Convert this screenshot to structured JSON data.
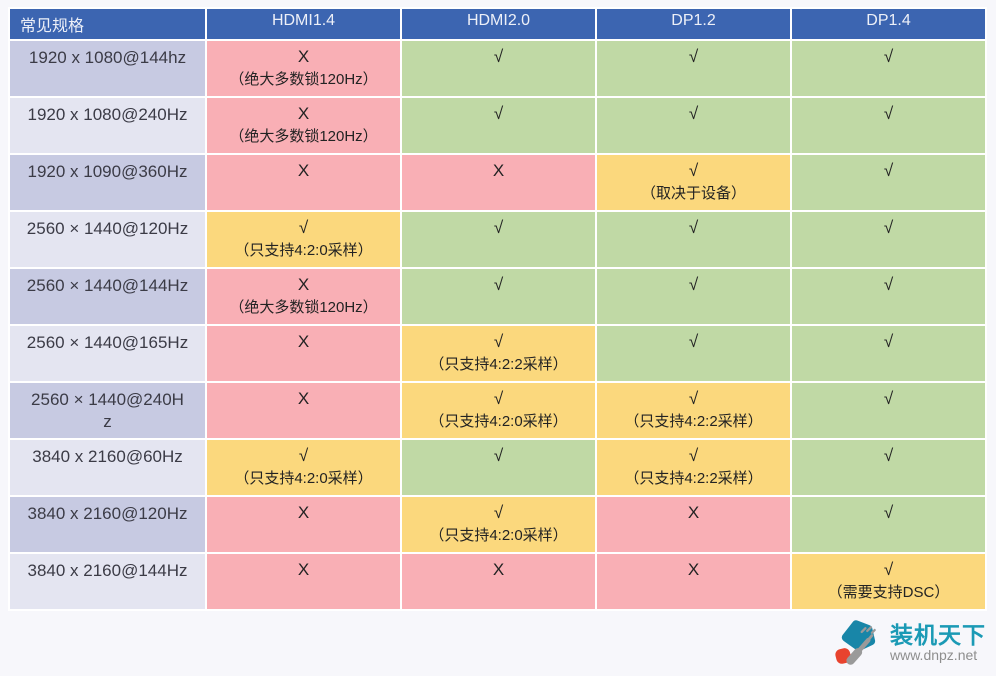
{
  "chart_data": {
    "type": "table",
    "columns": [
      "常见规格",
      "HDMI1.4",
      "HDMI2.0",
      "DP1.2",
      "DP1.4"
    ],
    "status_colors": {
      "yes": "#C0D9A5",
      "no": "#F9AFB5",
      "partial": "#FBD87D"
    },
    "rows": [
      {
        "spec": "1920 x 1080@144hz",
        "cells": [
          {
            "status": "no",
            "mark": "X",
            "note": "（绝大多数锁120Hz）"
          },
          {
            "status": "yes",
            "mark": "√",
            "note": ""
          },
          {
            "status": "yes",
            "mark": "√",
            "note": ""
          },
          {
            "status": "yes",
            "mark": "√",
            "note": ""
          }
        ]
      },
      {
        "spec": "1920 x 1080@240Hz",
        "cells": [
          {
            "status": "no",
            "mark": "X",
            "note": "（绝大多数锁120Hz）"
          },
          {
            "status": "yes",
            "mark": "√",
            "note": ""
          },
          {
            "status": "yes",
            "mark": "√",
            "note": ""
          },
          {
            "status": "yes",
            "mark": "√",
            "note": ""
          }
        ]
      },
      {
        "spec": "1920 x 1090@360Hz",
        "cells": [
          {
            "status": "no",
            "mark": "X",
            "note": ""
          },
          {
            "status": "no",
            "mark": "X",
            "note": ""
          },
          {
            "status": "partial",
            "mark": "√",
            "note": "（取决于设备）"
          },
          {
            "status": "yes",
            "mark": "√",
            "note": ""
          }
        ]
      },
      {
        "spec": "2560 × 1440@120Hz",
        "cells": [
          {
            "status": "partial",
            "mark": "√",
            "note": "（只支持4:2:0采样）"
          },
          {
            "status": "yes",
            "mark": "√",
            "note": ""
          },
          {
            "status": "yes",
            "mark": "√",
            "note": ""
          },
          {
            "status": "yes",
            "mark": "√",
            "note": ""
          }
        ]
      },
      {
        "spec": "2560 × 1440@144Hz",
        "cells": [
          {
            "status": "no",
            "mark": "X",
            "note": "（绝大多数锁120Hz）"
          },
          {
            "status": "yes",
            "mark": "√",
            "note": ""
          },
          {
            "status": "yes",
            "mark": "√",
            "note": ""
          },
          {
            "status": "yes",
            "mark": "√",
            "note": ""
          }
        ]
      },
      {
        "spec": "2560 × 1440@165Hz",
        "cells": [
          {
            "status": "no",
            "mark": "X",
            "note": ""
          },
          {
            "status": "partial",
            "mark": "√",
            "note": "（只支持4:2:2采样）"
          },
          {
            "status": "yes",
            "mark": "√",
            "note": ""
          },
          {
            "status": "yes",
            "mark": "√",
            "note": ""
          }
        ]
      },
      {
        "spec": "2560 × 1440@240H\nz",
        "cells": [
          {
            "status": "no",
            "mark": "X",
            "note": ""
          },
          {
            "status": "partial",
            "mark": "√",
            "note": "（只支持4:2:0采样）"
          },
          {
            "status": "partial",
            "mark": "√",
            "note": "（只支持4:2:2采样）"
          },
          {
            "status": "yes",
            "mark": "√",
            "note": ""
          }
        ]
      },
      {
        "spec": "3840 x 2160@60Hz",
        "cells": [
          {
            "status": "partial",
            "mark": "√",
            "note": "（只支持4:2:0采样）"
          },
          {
            "status": "yes",
            "mark": "√",
            "note": ""
          },
          {
            "status": "partial",
            "mark": "√",
            "note": "（只支持4:2:2采样）"
          },
          {
            "status": "yes",
            "mark": "√",
            "note": ""
          }
        ]
      },
      {
        "spec": "3840 x 2160@120Hz",
        "cells": [
          {
            "status": "no",
            "mark": "X",
            "note": ""
          },
          {
            "status": "partial",
            "mark": "√",
            "note": "（只支持4:2:0采样）"
          },
          {
            "status": "no",
            "mark": "X",
            "note": ""
          },
          {
            "status": "yes",
            "mark": "√",
            "note": ""
          }
        ]
      },
      {
        "spec": "3840 x 2160@144Hz",
        "cells": [
          {
            "status": "no",
            "mark": "X",
            "note": ""
          },
          {
            "status": "no",
            "mark": "X",
            "note": ""
          },
          {
            "status": "no",
            "mark": "X",
            "note": ""
          },
          {
            "status": "partial",
            "mark": "√",
            "note": "（需要支持DSC）"
          }
        ]
      }
    ]
  },
  "colors": {
    "header_bg": "#3C65B1",
    "header_text": "#EDF0F8",
    "spec_col_dark": "#C7CAE2",
    "spec_col_light": "#E4E5F1",
    "page_bg": "#F7F7FB",
    "brand_teal": "#1B9AB5",
    "brand_red": "#E8432E",
    "brand_gray": "#9A9A9A"
  },
  "watermark": {
    "brand": "装机天下",
    "url": "www.dnpz.net"
  }
}
